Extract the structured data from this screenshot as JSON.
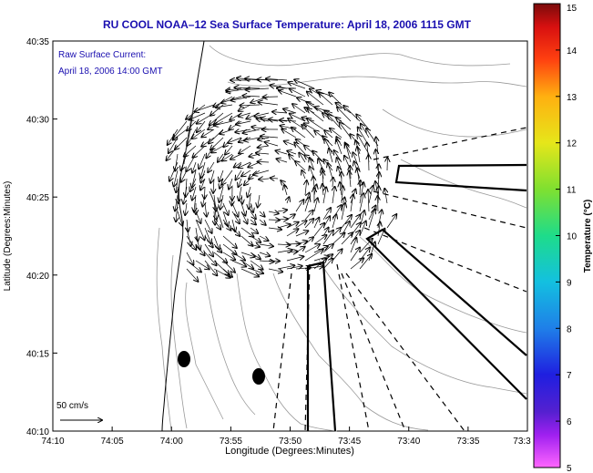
{
  "title": "RU COOL  NOAA–12  Sea Surface Temperature:  April 18, 2006 1115 GMT",
  "annotation": {
    "line1": "Raw Surface Current:",
    "line2": "April 18, 2006 14:00 GMT",
    "color": "#1a0fb0"
  },
  "scale_label": "50 cm/s",
  "chart_data": {
    "type": "map",
    "xlabel": "Longitude (Degrees:Minutes)",
    "ylabel": "Latitude (Degrees:Minutes)",
    "x_ticks": [
      "74:10",
      "74:05",
      "74:00",
      "73:55",
      "73:50",
      "73:45",
      "73:40",
      "73:35",
      "73:3"
    ],
    "y_ticks": [
      "40:35",
      "40:30",
      "40:25",
      "40:20",
      "40:15",
      "40:10"
    ],
    "colorbar": {
      "label": "Temperature (°C)",
      "min": 5,
      "max": 15,
      "ticks": [
        "15",
        "14",
        "13",
        "12",
        "11",
        "10",
        "9",
        "8",
        "7",
        "6",
        "5"
      ],
      "colors": [
        "#ff66ff",
        "#7a2bd6",
        "#1f1fe0",
        "#1f7fe8",
        "#13c0e0",
        "#1edc8a",
        "#7fe030",
        "#e6e61a",
        "#ffb010",
        "#ff4010",
        "#d81010",
        "#7a0b0b"
      ]
    },
    "legend": "none",
    "grid": false
  }
}
